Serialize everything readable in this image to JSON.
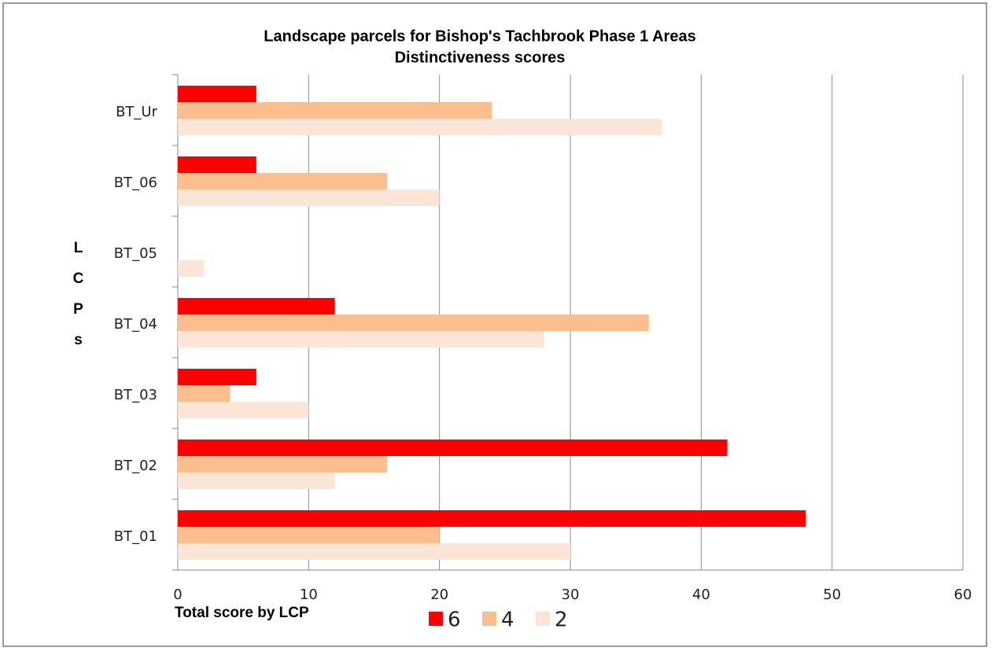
{
  "chart_data": {
    "type": "bar",
    "orientation": "horizontal",
    "title": "Landscape parcels for Bishop's Tachbrook Phase 1 Areas",
    "subtitle": "Distinctiveness scores",
    "x_label": "Total score by LCP",
    "y_label": "LCPs",
    "categories": [
      "BT_01",
      "BT_02",
      "BT_03",
      "BT_04",
      "BT_05",
      "BT_06",
      "BT_Ur"
    ],
    "series": [
      {
        "name": "6",
        "color": "#ff0000",
        "values": [
          48,
          42,
          6,
          12,
          0,
          6,
          6
        ]
      },
      {
        "name": "4",
        "color": "#fbbf8f",
        "values": [
          20,
          16,
          4,
          36,
          0,
          16,
          24
        ]
      },
      {
        "name": "2",
        "color": "#fbe5d6",
        "values": [
          30,
          12,
          10,
          28,
          2,
          20,
          37
        ]
      }
    ],
    "xlim": [
      0,
      60
    ],
    "xticks": [
      0,
      10,
      20,
      30,
      40,
      50,
      60
    ],
    "grid": true,
    "legend": "bottom"
  }
}
